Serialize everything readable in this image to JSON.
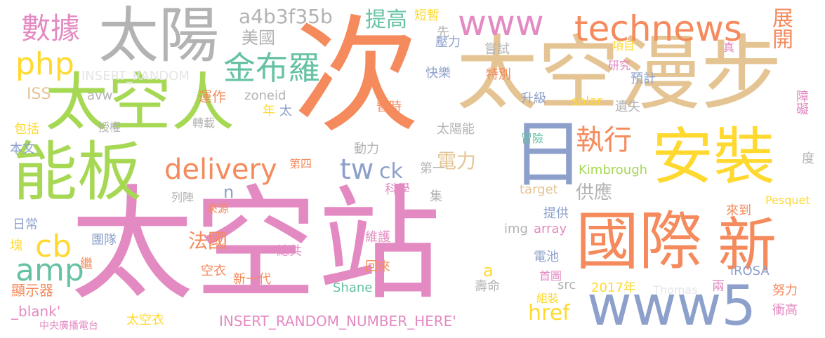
{
  "cloud": {
    "words": [
      {
        "text": "太空站",
        "color": "#e38ac2"
      },
      {
        "text": "次",
        "color": "#f58a5c"
      },
      {
        "text": "太空漫步",
        "color": "#e5c494"
      },
      {
        "text": "太空人",
        "color": "#a6d854"
      },
      {
        "text": "太陽",
        "color": "#b3b3b3"
      },
      {
        "text": "能板",
        "color": "#a6d854"
      },
      {
        "text": "國際",
        "color": "#f58a5c"
      },
      {
        "text": "新",
        "color": "#f58a5c"
      },
      {
        "text": "安裝",
        "color": "#ffd92f"
      },
      {
        "text": "日",
        "color": "#8da0cb"
      },
      {
        "text": "www5",
        "color": "#8da0cb"
      },
      {
        "text": "www",
        "color": "#e38ac2"
      },
      {
        "text": "technews",
        "color": "#f58a5c"
      },
      {
        "text": "數據",
        "color": "#e38ac2"
      },
      {
        "text": "金布羅",
        "color": "#66c2a5"
      },
      {
        "text": "php",
        "color": "#ffd92f"
      },
      {
        "text": "delivery",
        "color": "#f58a5c"
      },
      {
        "text": "tw",
        "color": "#8da0cb"
      },
      {
        "text": "ck",
        "color": "#8da0cb"
      },
      {
        "text": "執行",
        "color": "#f58a5c"
      },
      {
        "text": "amp",
        "color": "#66c2a5"
      },
      {
        "text": "cb",
        "color": "#ffd92f"
      },
      {
        "text": "a4b3f35b",
        "color": "#b3b3b3"
      },
      {
        "text": "美國",
        "color": "#b3b3b3"
      },
      {
        "text": "提高",
        "color": "#66c2a5"
      },
      {
        "text": "展開",
        "color": "#f58a5c"
      },
      {
        "text": "法國",
        "color": "#f58a5c"
      },
      {
        "text": "電力",
        "color": "#e5c494"
      },
      {
        "text": "供應",
        "color": "#b3b3b3"
      },
      {
        "text": "href",
        "color": "#ffd92f"
      },
      {
        "text": "INSERT_RANDOM",
        "color": "#e5e5e5"
      },
      {
        "text": "INSERT_RANDOM_NUMBER_HERE'",
        "color": "#e38ac2"
      },
      {
        "text": "ISS",
        "color": "#e5c494"
      },
      {
        "text": "avw",
        "color": "#b3b3b3"
      },
      {
        "text": "zoneid",
        "color": "#b3b3b3"
      },
      {
        "text": "運作",
        "color": "#f58a5c"
      },
      {
        "text": "年",
        "color": "#ffd92f"
      },
      {
        "text": "太",
        "color": "#8da0cb"
      },
      {
        "text": "包括",
        "color": "#ffd92f"
      },
      {
        "text": "授權",
        "color": "#b3b3b3"
      },
      {
        "text": "轉載",
        "color": "#b3b3b3"
      },
      {
        "text": "本文",
        "color": "#8da0cb"
      },
      {
        "text": "n",
        "color": "#8da0cb"
      },
      {
        "text": "先",
        "color": "#b3b3b3"
      },
      {
        "text": "短暫",
        "color": "#ffd92f"
      },
      {
        "text": "壓力",
        "color": "#8da0cb"
      },
      {
        "text": "嘗試",
        "color": "#b3b3b3"
      },
      {
        "text": "快樂",
        "color": "#8da0cb"
      },
      {
        "text": "特別",
        "color": "#f58a5c"
      },
      {
        "text": "暫時",
        "color": "#f58a5c"
      },
      {
        "text": "升級",
        "color": "#8da0cb"
      },
      {
        "text": "solar",
        "color": "#ffd92f"
      },
      {
        "text": "遺失",
        "color": "#b3b3b3"
      },
      {
        "text": "太陽能",
        "color": "#b3b3b3"
      },
      {
        "text": "冒險",
        "color": "#66c2a5"
      },
      {
        "text": "動力",
        "color": "#b3b3b3"
      },
      {
        "text": "第四",
        "color": "#f58a5c"
      },
      {
        "text": "第一",
        "color": "#b3b3b3"
      },
      {
        "text": "Kimbrough",
        "color": "#a6d854"
      },
      {
        "text": "target",
        "color": "#e5c494"
      },
      {
        "text": "科學",
        "color": "#e38ac2"
      },
      {
        "text": "集",
        "color": "#b3b3b3"
      },
      {
        "text": "列陣",
        "color": "#b3b3b3"
      },
      {
        "text": "來源",
        "color": "#f58a5c"
      },
      {
        "text": "日常",
        "color": "#8da0cb"
      },
      {
        "text": "提供",
        "color": "#8da0cb"
      },
      {
        "text": "img",
        "color": "#b3b3b3"
      },
      {
        "text": "array",
        "color": "#e38ac2"
      },
      {
        "text": "團隊",
        "color": "#8da0cb"
      },
      {
        "text": "維護",
        "color": "#e38ac2"
      },
      {
        "text": "電池",
        "color": "#8da0cb"
      },
      {
        "text": "塊",
        "color": "#ffd92f"
      },
      {
        "text": "總共",
        "color": "#e38ac2"
      },
      {
        "text": "繼",
        "color": "#f58a5c"
      },
      {
        "text": "回來",
        "color": "#f58a5c"
      },
      {
        "text": "空衣",
        "color": "#f58a5c"
      },
      {
        "text": "新一代",
        "color": "#f58a5c"
      },
      {
        "text": "首圖",
        "color": "#e38ac2"
      },
      {
        "text": "src",
        "color": "#b3b3b3"
      },
      {
        "text": "壽命",
        "color": "#b3b3b3"
      },
      {
        "text": "2017年",
        "color": "#ffd92f"
      },
      {
        "text": "Thomas",
        "color": "#e5e5e5"
      },
      {
        "text": "兩",
        "color": "#e38ac2"
      },
      {
        "text": "努力",
        "color": "#f58a5c"
      },
      {
        "text": "顯示器",
        "color": "#f58a5c"
      },
      {
        "text": "_blank'",
        "color": "#e38ac2"
      },
      {
        "text": "Shane",
        "color": "#66c2a5"
      },
      {
        "text": "組裝",
        "color": "#ffd92f"
      },
      {
        "text": "iROSA",
        "color": "#8da0cb"
      },
      {
        "text": "衝高",
        "color": "#e38ac2"
      },
      {
        "text": "中央廣播電台",
        "color": "#e38ac2"
      },
      {
        "text": "太空衣",
        "color": "#ffd92f"
      },
      {
        "text": "項目",
        "color": "#ffd92f"
      },
      {
        "text": "研究",
        "color": "#e38ac2"
      },
      {
        "text": "預計",
        "color": "#8da0cb"
      },
      {
        "text": "真",
        "color": "#e38ac2"
      },
      {
        "text": "障礙",
        "color": "#e38ac2"
      },
      {
        "text": "度",
        "color": "#b3b3b3"
      },
      {
        "text": "Pesquet",
        "color": "#ffd92f"
      },
      {
        "text": "來到",
        "color": "#f58a5c"
      },
      {
        "text": "a",
        "color": "#ffd92f"
      }
    ]
  }
}
